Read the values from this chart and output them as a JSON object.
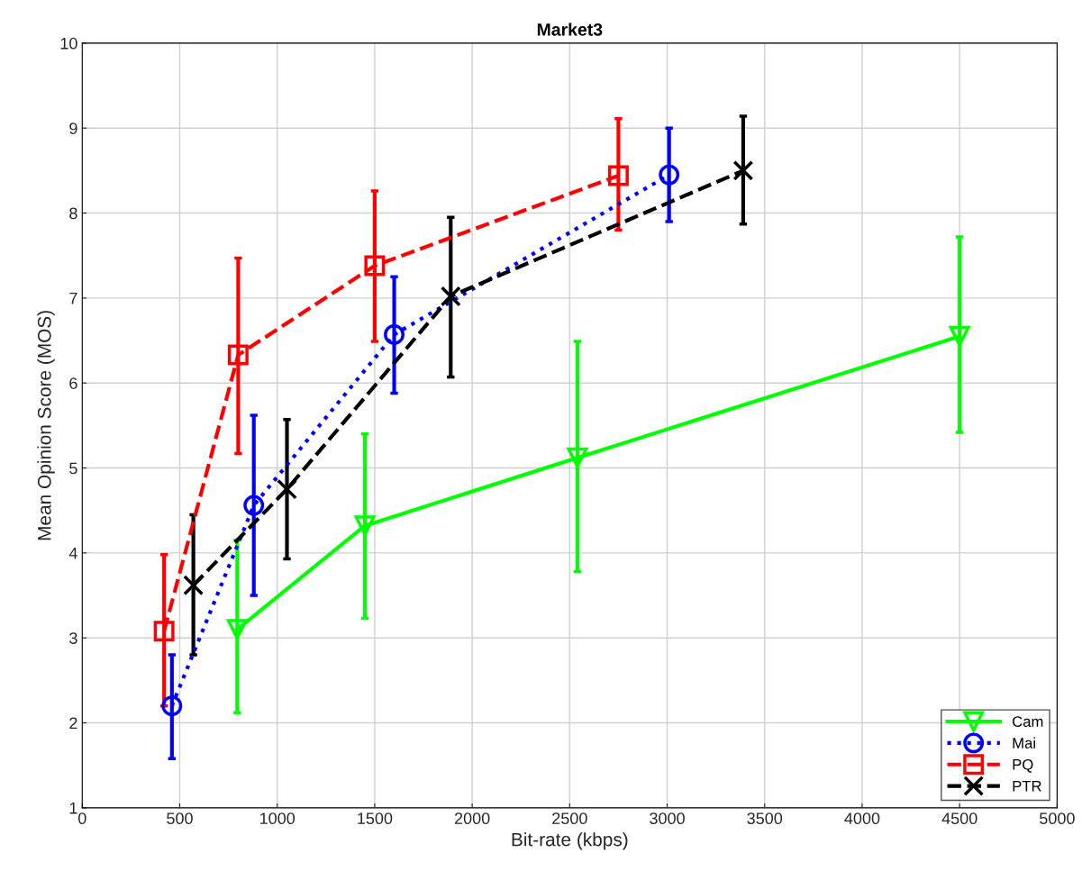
{
  "chart_data": {
    "type": "line",
    "title": "Market3",
    "xlabel": "Bit-rate (kbps)",
    "ylabel": "Mean Opinion Score (MOS)",
    "xlim": [
      0,
      5000
    ],
    "xticks": [
      0,
      500,
      1000,
      1500,
      2000,
      2500,
      3000,
      3500,
      4000,
      4500,
      5000
    ],
    "ylim": [
      1,
      10
    ],
    "yticks": [
      1,
      2,
      3,
      4,
      5,
      6,
      7,
      8,
      9,
      10
    ],
    "grid": true,
    "legend": "bottom right",
    "series": [
      {
        "name": "Cam",
        "color": "#00ff00",
        "marker": "triangle",
        "line_style": "solid",
        "x": [
          795,
          1450,
          2540,
          4500
        ],
        "values": [
          3.1,
          4.32,
          5.12,
          6.55
        ],
        "errors": [
          [
            2.12,
            4.15
          ],
          [
            3.23,
            5.4
          ],
          [
            3.78,
            6.49
          ],
          [
            5.42,
            7.72
          ]
        ]
      },
      {
        "name": "Mai",
        "color": "#0000ff",
        "marker": "circle",
        "line_style": "dotted",
        "x": [
          460,
          880,
          1600,
          3010
        ],
        "values": [
          2.2,
          4.56,
          6.57,
          8.45
        ],
        "errors": [
          [
            1.58,
            2.8
          ],
          [
            3.5,
            5.62
          ],
          [
            5.88,
            7.25
          ],
          [
            7.9,
            9.0
          ]
        ]
      },
      {
        "name": "PQ",
        "color": "#ff0000",
        "marker": "square",
        "line_style": "dashed",
        "x": [
          420,
          800,
          1500,
          2750
        ],
        "values": [
          3.08,
          6.33,
          7.38,
          8.44
        ],
        "errors": [
          [
            2.2,
            3.98
          ],
          [
            5.17,
            7.47
          ],
          [
            6.49,
            8.26
          ],
          [
            7.8,
            9.11
          ]
        ]
      },
      {
        "name": "PTR",
        "color": "#000000",
        "marker": "cross",
        "line_style": "dashed",
        "x": [
          570,
          1050,
          1890,
          3390
        ],
        "values": [
          3.62,
          4.75,
          7.02,
          8.5
        ],
        "errors": [
          [
            2.8,
            4.45
          ],
          [
            3.93,
            5.57
          ],
          [
            6.07,
            7.95
          ],
          [
            7.87,
            9.14
          ]
        ]
      }
    ]
  }
}
